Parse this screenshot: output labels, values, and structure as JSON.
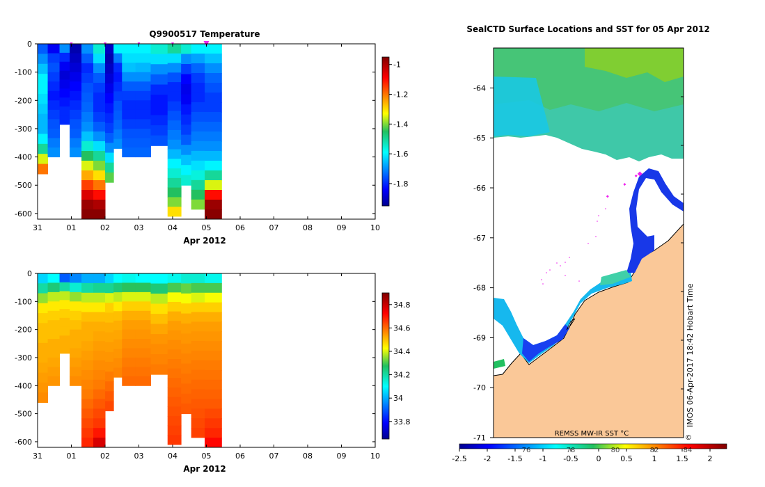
{
  "chart_data": [
    {
      "type": "heatmap",
      "title": "Q9900517  Temperature",
      "xlabel": "Apr 2012",
      "x_ticks": [
        "31",
        "01",
        "02",
        "03",
        "04",
        "05",
        "06",
        "07",
        "08",
        "09",
        "10"
      ],
      "x_range_days": [
        0,
        10
      ],
      "ylim": [
        -620,
        0
      ],
      "y_ticks": [
        "0",
        "-100",
        "-200",
        "-300",
        "-400",
        "-500",
        "-600"
      ],
      "y_tick_values": [
        0,
        -100,
        -200,
        -300,
        -400,
        -500,
        -600
      ],
      "colorbar": {
        "min": -1.95,
        "max": -0.95,
        "ticks": [
          "-1",
          "-1.2",
          "-1.4",
          "-1.6",
          "-1.8"
        ],
        "tick_values": [
          -1,
          -1.2,
          -1.4,
          -1.6,
          -1.8
        ]
      },
      "profile_marks_days": [
        1.0,
        2.0,
        3.0,
        4.0,
        5.0
      ],
      "profiles": [
        {
          "t0": 0.0,
          "t1": 0.3,
          "maxdepth": 460,
          "values": [
            -1.75,
            -1.7,
            -1.65,
            -1.6,
            -1.6,
            -1.62,
            -1.64,
            -1.66,
            -1.66,
            -1.6,
            -1.5,
            -1.35,
            -1.2
          ]
        },
        {
          "t0": 0.3,
          "t1": 0.65,
          "maxdepth": 400,
          "values": [
            -1.85,
            -1.78,
            -1.76,
            -1.78,
            -1.8,
            -1.82,
            -1.8,
            -1.78,
            -1.76,
            -1.75,
            -1.72,
            -1.7
          ]
        },
        {
          "t0": 0.65,
          "t1": 0.95,
          "maxdepth": 285,
          "values": [
            -1.7,
            -1.8,
            -1.85,
            -1.88,
            -1.86,
            -1.84,
            -1.82,
            -1.8,
            -1.8
          ]
        },
        {
          "t0": 0.95,
          "t1": 1.3,
          "maxdepth": 400,
          "values": [
            -1.92,
            -1.9,
            -1.88,
            -1.86,
            -1.84,
            -1.82,
            -1.8,
            -1.78,
            -1.76,
            -1.75,
            -1.72,
            -1.7
          ]
        },
        {
          "t0": 1.3,
          "t1": 1.65,
          "maxdepth": 620,
          "values": [
            -1.7,
            -1.75,
            -1.8,
            -1.78,
            -1.76,
            -1.75,
            -1.74,
            -1.72,
            -1.7,
            -1.65,
            -1.55,
            -1.45,
            -1.35,
            -1.25,
            -1.15,
            -1.05,
            -0.98,
            -0.96
          ]
        },
        {
          "t0": 1.65,
          "t1": 2.0,
          "maxdepth": 620,
          "values": [
            -1.55,
            -1.62,
            -1.7,
            -1.75,
            -1.78,
            -1.8,
            -1.8,
            -1.78,
            -1.75,
            -1.7,
            -1.62,
            -1.5,
            -1.4,
            -1.3,
            -1.2,
            -1.1,
            -1.0,
            -0.96
          ]
        },
        {
          "t0": 2.0,
          "t1": 2.25,
          "maxdepth": 490,
          "values": [
            -1.9,
            -1.92,
            -1.9,
            -1.88,
            -1.86,
            -1.84,
            -1.82,
            -1.8,
            -1.78,
            -1.75,
            -1.7,
            -1.62,
            -1.5,
            -1.42
          ]
        },
        {
          "t0": 2.25,
          "t1": 2.5,
          "maxdepth": 370,
          "values": [
            -1.6,
            -1.72,
            -1.8,
            -1.82,
            -1.8,
            -1.78,
            -1.76,
            -1.75,
            -1.74,
            -1.72,
            -1.7
          ]
        },
        {
          "t0": 2.5,
          "t1": 2.9,
          "maxdepth": 400,
          "values": [
            -1.6,
            -1.62,
            -1.65,
            -1.7,
            -1.75,
            -1.78,
            -1.8,
            -1.8,
            -1.78,
            -1.76,
            -1.75,
            -1.74
          ]
        },
        {
          "t0": 2.9,
          "t1": 3.35,
          "maxdepth": 400,
          "values": [
            -1.6,
            -1.62,
            -1.66,
            -1.7,
            -1.75,
            -1.78,
            -1.8,
            -1.8,
            -1.78,
            -1.76,
            -1.75,
            -1.74
          ]
        },
        {
          "t0": 3.35,
          "t1": 3.85,
          "maxdepth": 360,
          "values": [
            -1.55,
            -1.62,
            -1.7,
            -1.75,
            -1.8,
            -1.82,
            -1.82,
            -1.8,
            -1.78,
            -1.76
          ]
        },
        {
          "t0": 3.85,
          "t1": 4.25,
          "maxdepth": 610,
          "values": [
            -1.5,
            -1.62,
            -1.7,
            -1.76,
            -1.8,
            -1.8,
            -1.78,
            -1.76,
            -1.74,
            -1.72,
            -1.7,
            -1.66,
            -1.6,
            -1.55,
            -1.5,
            -1.45,
            -1.4,
            -1.3
          ]
        },
        {
          "t0": 4.25,
          "t1": 4.55,
          "maxdepth": 500,
          "values": [
            -1.55,
            -1.7,
            -1.78,
            -1.84,
            -1.86,
            -1.85,
            -1.82,
            -1.8,
            -1.78,
            -1.75,
            -1.7,
            -1.65,
            -1.6,
            -1.55
          ]
        },
        {
          "t0": 4.55,
          "t1": 4.95,
          "maxdepth": 585,
          "values": [
            -1.6,
            -1.68,
            -1.74,
            -1.78,
            -1.8,
            -1.8,
            -1.78,
            -1.76,
            -1.74,
            -1.72,
            -1.7,
            -1.66,
            -1.62,
            -1.56,
            -1.5,
            -1.45,
            -1.4
          ]
        },
        {
          "t0": 4.95,
          "t1": 5.45,
          "maxdepth": 620,
          "values": [
            -1.6,
            -1.65,
            -1.7,
            -1.74,
            -1.76,
            -1.78,
            -1.78,
            -1.76,
            -1.74,
            -1.72,
            -1.7,
            -1.66,
            -1.6,
            -1.5,
            -1.35,
            -1.1,
            -0.98,
            -0.96
          ]
        }
      ]
    },
    {
      "type": "heatmap",
      "title": "",
      "xlabel": "Apr 2012",
      "x_ticks": [
        "31",
        "01",
        "02",
        "03",
        "04",
        "05",
        "06",
        "07",
        "08",
        "09",
        "10"
      ],
      "x_range_days": [
        0,
        10
      ],
      "ylim": [
        -620,
        0
      ],
      "y_ticks": [
        "0",
        "-100",
        "-200",
        "-300",
        "-400",
        "-500",
        "-600"
      ],
      "y_tick_values": [
        0,
        -100,
        -200,
        -300,
        -400,
        -500,
        -600
      ],
      "colorbar": {
        "min": 33.65,
        "max": 34.9,
        "ticks": [
          "34.8",
          "34.6",
          "34.4",
          "34.2",
          "34",
          "33.8"
        ],
        "tick_values": [
          34.8,
          34.6,
          34.4,
          34.2,
          34.0,
          33.8
        ]
      },
      "profiles": [
        {
          "t0": 0.0,
          "t1": 0.3,
          "maxdepth": 460,
          "values": [
            34.05,
            34.2,
            34.35,
            34.45,
            34.48,
            34.5,
            34.5,
            34.52,
            34.52,
            34.53,
            34.54,
            34.55,
            34.56
          ]
        },
        {
          "t0": 0.3,
          "t1": 0.65,
          "maxdepth": 400,
          "values": [
            34.1,
            34.25,
            34.38,
            34.45,
            34.48,
            34.5,
            34.5,
            34.52,
            34.52,
            34.53,
            34.54,
            34.55
          ]
        },
        {
          "t0": 0.65,
          "t1": 0.95,
          "maxdepth": 285,
          "values": [
            33.9,
            34.2,
            34.38,
            34.45,
            34.48,
            34.5,
            34.5,
            34.52,
            34.52
          ]
        },
        {
          "t0": 0.95,
          "t1": 1.3,
          "maxdepth": 400,
          "values": [
            33.95,
            34.15,
            34.35,
            34.45,
            34.48,
            34.5,
            34.52,
            34.52,
            34.53,
            34.54,
            34.55,
            34.56
          ]
        },
        {
          "t0": 1.3,
          "t1": 1.65,
          "maxdepth": 620,
          "values": [
            34.0,
            34.2,
            34.38,
            34.45,
            34.5,
            34.52,
            34.52,
            34.53,
            34.54,
            34.55,
            34.56,
            34.57,
            34.58,
            34.6,
            34.62,
            34.64,
            34.66,
            34.68
          ]
        },
        {
          "t0": 1.65,
          "t1": 2.0,
          "maxdepth": 620,
          "values": [
            34.0,
            34.22,
            34.38,
            34.45,
            34.5,
            34.52,
            34.53,
            34.54,
            34.55,
            34.56,
            34.57,
            34.58,
            34.6,
            34.62,
            34.64,
            34.66,
            34.7,
            34.78
          ]
        },
        {
          "t0": 2.0,
          "t1": 2.25,
          "maxdepth": 490,
          "values": [
            34.05,
            34.22,
            34.4,
            34.48,
            34.5,
            34.52,
            34.53,
            34.54,
            34.55,
            34.56,
            34.58,
            34.6,
            34.62,
            34.64
          ]
        },
        {
          "t0": 2.25,
          "t1": 2.5,
          "maxdepth": 370,
          "values": [
            34.1,
            34.25,
            34.38,
            34.45,
            34.5,
            34.52,
            34.53,
            34.54,
            34.55,
            34.56,
            34.57
          ]
        },
        {
          "t0": 2.5,
          "t1": 2.9,
          "maxdepth": 400,
          "values": [
            34.12,
            34.28,
            34.4,
            34.48,
            34.52,
            34.54,
            34.55,
            34.56,
            34.57,
            34.58,
            34.59,
            34.6
          ]
        },
        {
          "t0": 2.9,
          "t1": 3.35,
          "maxdepth": 400,
          "values": [
            34.1,
            34.28,
            34.4,
            34.48,
            34.52,
            34.54,
            34.55,
            34.56,
            34.57,
            34.58,
            34.59,
            34.6
          ]
        },
        {
          "t0": 3.35,
          "t1": 3.85,
          "maxdepth": 360,
          "values": [
            34.1,
            34.25,
            34.38,
            34.46,
            34.5,
            34.53,
            34.55,
            34.56,
            34.57,
            34.58
          ]
        },
        {
          "t0": 3.85,
          "t1": 4.25,
          "maxdepth": 610,
          "values": [
            34.12,
            34.3,
            34.42,
            34.48,
            34.52,
            34.54,
            34.55,
            34.56,
            34.57,
            34.58,
            34.59,
            34.6,
            34.61,
            34.62,
            34.63,
            34.64,
            34.65,
            34.66
          ]
        },
        {
          "t0": 4.25,
          "t1": 4.55,
          "maxdepth": 500,
          "values": [
            34.15,
            34.32,
            34.42,
            34.48,
            34.52,
            34.54,
            34.55,
            34.56,
            34.57,
            34.58,
            34.59,
            34.6,
            34.61,
            34.62
          ]
        },
        {
          "t0": 4.55,
          "t1": 4.95,
          "maxdepth": 585,
          "values": [
            34.15,
            34.3,
            34.4,
            34.48,
            34.52,
            34.54,
            34.55,
            34.56,
            34.57,
            34.58,
            34.59,
            34.6,
            34.61,
            34.62,
            34.63,
            34.64,
            34.65
          ]
        },
        {
          "t0": 4.95,
          "t1": 5.45,
          "maxdepth": 620,
          "values": [
            34.12,
            34.3,
            34.42,
            34.48,
            34.52,
            34.54,
            34.55,
            34.56,
            34.57,
            34.58,
            34.59,
            34.6,
            34.61,
            34.62,
            34.64,
            34.66,
            34.68,
            34.72
          ]
        }
      ]
    },
    {
      "type": "heatmap",
      "title": "SealCTD Surface Locations and SST for 05 Apr 2012",
      "ylim": [
        -71,
        -63.2
      ],
      "y_ticks": [
        "-64",
        "-65",
        "-66",
        "-67",
        "-68",
        "-69",
        "-70",
        "-71"
      ],
      "y_tick_values": [
        -64,
        -65,
        -66,
        -67,
        -68,
        -69,
        -70,
        -71
      ],
      "footer_label": "REMSS MW-IR SST °C",
      "colorbar": {
        "min": -2.5,
        "max": 2.3,
        "ticks": [
          "-2.5",
          "-2",
          "-1.5",
          "-1",
          "-0.5",
          "0",
          "0.5",
          "1",
          "1.5",
          "2"
        ],
        "tick_values": [
          -2.5,
          -2,
          -1.5,
          -1,
          -0.5,
          0,
          0.5,
          1,
          1.5,
          2
        ]
      },
      "colorbar_faint_labels": [
        {
          "text": "76",
          "at": -1.3
        },
        {
          "text": "78",
          "at": -0.5
        },
        {
          "text": "80",
          "at": 0.3
        },
        {
          "text": "82",
          "at": 1.0
        },
        {
          "text": "84",
          "at": 1.6
        }
      ],
      "watermark": "IMOS 06-Apr-2017 18:42 Hobart Time",
      "copyright": "©",
      "seal_positions": [
        {
          "lat": -65.72,
          "lon_frac": 0.77
        },
        {
          "lat": -65.76,
          "lon_frac": 0.75
        },
        {
          "lat": -65.93,
          "lon_frac": 0.69
        },
        {
          "lat": -66.17,
          "lon_frac": 0.6
        }
      ]
    }
  ],
  "colors": {
    "land": "#fac898",
    "mark": "#ee22ee",
    "coast": "#000000",
    "no_data": "#ffffff"
  }
}
